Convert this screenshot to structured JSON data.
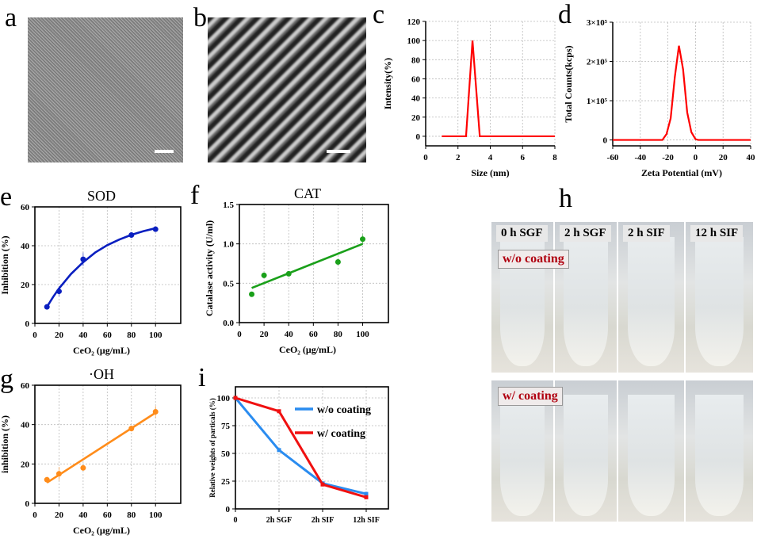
{
  "panel_labels": {
    "a": "a",
    "b": "b",
    "c": "c",
    "d": "d",
    "e": "e",
    "f": "f",
    "g": "g",
    "h": "h",
    "i": "i"
  },
  "panel_h": {
    "columns": [
      "0 h SGF",
      "2 h SGF",
      "2 h SIF",
      "12 h SIF"
    ],
    "rows": [
      "w/o coating",
      "w/ coating"
    ],
    "label_color": "#b00010"
  },
  "chart_data": [
    {
      "id": "c",
      "type": "line",
      "title": "",
      "xlabel": "Size (nm)",
      "ylabel": "Intensity(%)",
      "xlim": [
        0,
        8
      ],
      "ylim": [
        -10,
        120
      ],
      "xticks": [
        0,
        2,
        4,
        6,
        8
      ],
      "yticks": [
        0,
        20,
        40,
        60,
        80,
        100,
        120
      ],
      "grid": true,
      "color": "#ff0000",
      "series": [
        {
          "x": [
            1,
            2.5,
            2.9,
            3.35,
            8
          ],
          "y": [
            0,
            0,
            100,
            0,
            0
          ]
        }
      ]
    },
    {
      "id": "d",
      "type": "line",
      "title": "",
      "xlabel": "Zeta Potential (mV)",
      "ylabel": "Total Counts(kcps)",
      "xlim": [
        -60,
        40
      ],
      "ylim": [
        -15000,
        300000
      ],
      "xticks": [
        -60,
        -40,
        -20,
        0,
        20,
        40
      ],
      "yticks": [
        0,
        100000,
        200000,
        300000
      ],
      "ytick_labels": [
        "0",
        "1×10⁵",
        "2×10⁵",
        "3×10⁵"
      ],
      "grid": true,
      "color": "#ff0000",
      "series": [
        {
          "x": [
            -60,
            -24,
            -21,
            -18,
            -15,
            -12,
            -9,
            -6,
            -3,
            0,
            2,
            40
          ],
          "y": [
            0,
            0,
            15000,
            55000,
            160000,
            240000,
            180000,
            70000,
            20000,
            2000,
            0,
            0
          ]
        }
      ]
    },
    {
      "id": "e",
      "type": "scatter",
      "title": "SOD",
      "xlabel": "CeO₂ (μg/mL)",
      "ylabel": "Inhibition (%)",
      "xlim": [
        0,
        110
      ],
      "ylim": [
        0,
        60
      ],
      "xticks": [
        0,
        20,
        40,
        60,
        80,
        100
      ],
      "yticks": [
        0,
        20,
        40,
        60
      ],
      "grid": true,
      "color": "#0a1fc0",
      "series": [
        {
          "x": [
            10,
            20,
            40,
            80,
            100
          ],
          "y": [
            8.5,
            16.5,
            33,
            45.5,
            48.5
          ],
          "err": [
            1,
            2.5,
            3.5,
            1.5,
            0.5
          ]
        }
      ],
      "fit": {
        "x": [
          10,
          15,
          20,
          30,
          40,
          50,
          60,
          70,
          80,
          90,
          100
        ],
        "y": [
          8.5,
          13.5,
          18,
          25.5,
          31.5,
          36.5,
          40.3,
          43.2,
          45.6,
          47.5,
          49
        ]
      }
    },
    {
      "id": "f",
      "type": "scatter",
      "title": "CAT",
      "xlabel": "CeO₂ (μg/mL)",
      "ylabel": "Catalase activity (U/ml)",
      "xlim": [
        0,
        110
      ],
      "ylim": [
        0,
        1.5
      ],
      "xticks": [
        0,
        20,
        40,
        60,
        80,
        100
      ],
      "yticks": [
        0,
        0.5,
        1,
        1.5
      ],
      "ytick_labels": [
        "0.0",
        "0.5",
        "1.0",
        "1.5"
      ],
      "grid": true,
      "color": "#1aa01a",
      "series": [
        {
          "x": [
            10,
            20,
            40,
            80,
            100
          ],
          "y": [
            0.36,
            0.6,
            0.62,
            0.77,
            1.06
          ],
          "err": [
            0.01,
            0.01,
            0.01,
            0.04,
            0.06
          ]
        }
      ],
      "fit": {
        "x": [
          10,
          100
        ],
        "y": [
          0.44,
          1.0
        ]
      }
    },
    {
      "id": "g",
      "type": "scatter",
      "title": "·OH",
      "xlabel": "CeO₂ (μg/mL)",
      "ylabel": "inhibition (%)",
      "xlim": [
        0,
        110
      ],
      "ylim": [
        0,
        60
      ],
      "xticks": [
        0,
        20,
        40,
        60,
        80,
        100
      ],
      "yticks": [
        0,
        20,
        40,
        60
      ],
      "grid": true,
      "color": "#ff8c1a",
      "series": [
        {
          "x": [
            10,
            20,
            40,
            80,
            100
          ],
          "y": [
            12,
            15,
            18,
            38,
            46.5
          ],
          "err": [
            1.5,
            3.5,
            1.5,
            1.5,
            3
          ]
        }
      ],
      "fit": {
        "x": [
          10,
          100
        ],
        "y": [
          10.5,
          46
        ]
      }
    },
    {
      "id": "i",
      "type": "line",
      "title": "",
      "xlabel": "",
      "ylabel": "Relative weights of particals (%)",
      "categories": [
        "0",
        "2h SGF",
        "2h SIF",
        "12h SIF"
      ],
      "ylim": [
        0,
        110
      ],
      "yticks": [
        0,
        25,
        50,
        75,
        100
      ],
      "grid": true,
      "legend": "top-right",
      "series": [
        {
          "name": "w/o coating",
          "color": "#2a8cf0",
          "y": [
            100,
            53,
            23,
            13.5
          ]
        },
        {
          "name": "w/ coating",
          "color": "#f01010",
          "y": [
            100,
            88,
            22,
            10.5
          ]
        }
      ]
    }
  ]
}
